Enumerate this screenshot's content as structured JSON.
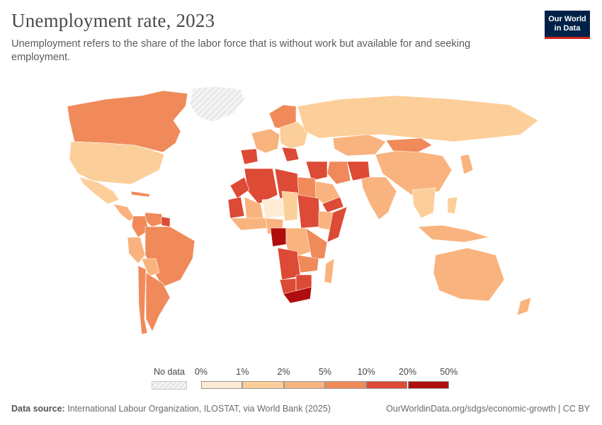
{
  "header": {
    "title": "Unemployment rate, 2023",
    "subtitle": "Unemployment refers to the share of the labor force that is without work but available for and seeking employment."
  },
  "logo": {
    "line1": "Our World",
    "line2": "in Data",
    "background": "#002147",
    "accent": "#ce261e"
  },
  "legend": {
    "no_data_label": "No data",
    "breaks": [
      "0%",
      "1%",
      "2%",
      "5%",
      "10%",
      "20%",
      "50%"
    ],
    "colors": [
      "#fdebd4",
      "#fcce9a",
      "#f9b37e",
      "#f08a5a",
      "#dd4a35",
      "#b00e0e"
    ]
  },
  "map": {
    "no_data_color": "#efefef",
    "regions": [
      {
        "name": "Greenland",
        "bin": -1
      },
      {
        "name": "Canada",
        "bin": 3
      },
      {
        "name": "United States",
        "bin": 1
      },
      {
        "name": "Mexico",
        "bin": 1
      },
      {
        "name": "Central America",
        "bin": 2
      },
      {
        "name": "Caribbean",
        "bin": 3
      },
      {
        "name": "Venezuela",
        "bin": 3
      },
      {
        "name": "Colombia",
        "bin": 3
      },
      {
        "name": "Peru",
        "bin": 2
      },
      {
        "name": "Brazil",
        "bin": 3
      },
      {
        "name": "Bolivia",
        "bin": 2
      },
      {
        "name": "Argentina",
        "bin": 3
      },
      {
        "name": "Chile",
        "bin": 3
      },
      {
        "name": "Guyana",
        "bin": 4
      },
      {
        "name": "Spain",
        "bin": 4
      },
      {
        "name": "Western Europe",
        "bin": 2
      },
      {
        "name": "Scandinavia",
        "bin": 3
      },
      {
        "name": "Eastern Europe",
        "bin": 1
      },
      {
        "name": "Balkans",
        "bin": 4
      },
      {
        "name": "Russia",
        "bin": 1
      },
      {
        "name": "Kazakhstan",
        "bin": 2
      },
      {
        "name": "Mongolia",
        "bin": 3
      },
      {
        "name": "China",
        "bin": 2
      },
      {
        "name": "Japan",
        "bin": 2
      },
      {
        "name": "India",
        "bin": 2
      },
      {
        "name": "Afghanistan",
        "bin": 4
      },
      {
        "name": "Iran",
        "bin": 3
      },
      {
        "name": "Middle East",
        "bin": 4
      },
      {
        "name": "Arabian Peninsula",
        "bin": 2
      },
      {
        "name": "Yemen",
        "bin": 4
      },
      {
        "name": "Algeria",
        "bin": 4
      },
      {
        "name": "Libya",
        "bin": 4
      },
      {
        "name": "Morocco",
        "bin": 4
      },
      {
        "name": "Mauritania",
        "bin": 4
      },
      {
        "name": "Mali",
        "bin": 2
      },
      {
        "name": "Niger",
        "bin": 0
      },
      {
        "name": "Chad",
        "bin": 1
      },
      {
        "name": "Egypt",
        "bin": 3
      },
      {
        "name": "Sudan",
        "bin": 4
      },
      {
        "name": "Ethiopia",
        "bin": 2
      },
      {
        "name": "Somalia",
        "bin": 4
      },
      {
        "name": "West Africa",
        "bin": 2
      },
      {
        "name": "Nigeria",
        "bin": 2
      },
      {
        "name": "Gabon",
        "bin": 5
      },
      {
        "name": "Congo",
        "bin": 2
      },
      {
        "name": "East Africa",
        "bin": 3
      },
      {
        "name": "Angola",
        "bin": 4
      },
      {
        "name": "Zambia",
        "bin": 3
      },
      {
        "name": "Namibia",
        "bin": 4
      },
      {
        "name": "Botswana",
        "bin": 4
      },
      {
        "name": "South Africa",
        "bin": 5
      },
      {
        "name": "Madagascar",
        "bin": 2
      },
      {
        "name": "Southeast Asia",
        "bin": 1
      },
      {
        "name": "Indonesia",
        "bin": 2
      },
      {
        "name": "Philippines",
        "bin": 1
      },
      {
        "name": "Australia",
        "bin": 2
      },
      {
        "name": "New Zealand",
        "bin": 2
      }
    ]
  },
  "footer": {
    "source_label": "Data source:",
    "source_text": "International Labour Organization, ILOSTAT, via World Bank (2025)",
    "url": "OurWorldinData.org/sdgs/economic-growth | CC BY"
  }
}
